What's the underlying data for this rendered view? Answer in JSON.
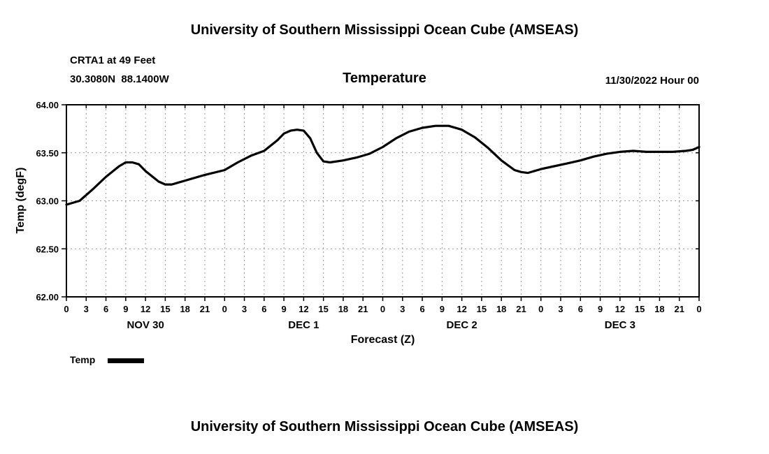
{
  "page": {
    "top_title": "University of Southern Mississippi Ocean Cube (AMSEAS)",
    "bottom_title": "University of Southern Mississippi Ocean Cube (AMSEAS)"
  },
  "header": {
    "station_line1": "CRTA1 at 49 Feet",
    "station_line2": "30.3080N  88.1400W",
    "chart_title": "Temperature",
    "datetime": "11/30/2022 Hour 00"
  },
  "legend": {
    "label": "Temp",
    "color": "#000000",
    "position": "bottom-left"
  },
  "chart_data": {
    "type": "line",
    "title": "Temperature",
    "xlabel": "Forecast (Z)",
    "ylabel": "Temp (degF)",
    "xlim": [
      0,
      96
    ],
    "ylim": [
      62.0,
      64.0
    ],
    "grid": true,
    "x_tick_hours": [
      0,
      3,
      6,
      9,
      12,
      15,
      18,
      21,
      24,
      27,
      30,
      33,
      36,
      39,
      42,
      45,
      48,
      51,
      54,
      57,
      60,
      63,
      66,
      69,
      72,
      75,
      78,
      81,
      84,
      87,
      90,
      93,
      96
    ],
    "x_tick_labels": [
      "0",
      "3",
      "6",
      "9",
      "12",
      "15",
      "18",
      "21",
      "0",
      "3",
      "6",
      "9",
      "12",
      "15",
      "18",
      "21",
      "0",
      "3",
      "6",
      "9",
      "12",
      "15",
      "18",
      "21",
      "0",
      "3",
      "6",
      "9",
      "12",
      "15",
      "18",
      "21",
      "0"
    ],
    "y_tick_values": [
      62.0,
      62.5,
      63.0,
      63.5,
      64.0
    ],
    "y_tick_labels": [
      "62.00",
      "62.50",
      "63.00",
      "63.50",
      "64.00"
    ],
    "date_labels": [
      {
        "hour": 12,
        "label": "NOV 30"
      },
      {
        "hour": 36,
        "label": "DEC 1"
      },
      {
        "hour": 60,
        "label": "DEC 2"
      },
      {
        "hour": 84,
        "label": "DEC 3"
      }
    ],
    "series": [
      {
        "name": "Temp",
        "color": "#000000",
        "x": [
          0,
          2,
          4,
          6,
          8,
          9,
          10,
          11,
          12,
          14,
          15,
          16,
          18,
          21,
          24,
          26,
          28,
          30,
          32,
          33,
          34,
          35,
          36,
          37,
          38,
          39,
          40,
          42,
          44,
          46,
          48,
          50,
          52,
          54,
          56,
          58,
          60,
          62,
          64,
          66,
          68,
          69,
          70,
          72,
          74,
          76,
          78,
          80,
          82,
          84,
          86,
          88,
          90,
          92,
          94,
          95,
          96
        ],
        "values": [
          62.96,
          63.0,
          63.12,
          63.25,
          63.36,
          63.4,
          63.4,
          63.38,
          63.31,
          63.2,
          63.17,
          63.17,
          63.21,
          63.27,
          63.32,
          63.4,
          63.47,
          63.52,
          63.63,
          63.7,
          63.73,
          63.74,
          63.73,
          63.65,
          63.5,
          63.41,
          63.4,
          63.42,
          63.45,
          63.49,
          63.56,
          63.65,
          63.72,
          63.76,
          63.78,
          63.78,
          63.74,
          63.66,
          63.55,
          63.42,
          63.32,
          63.3,
          63.29,
          63.33,
          63.36,
          63.39,
          63.42,
          63.46,
          63.49,
          63.51,
          63.52,
          63.51,
          63.51,
          63.51,
          63.52,
          63.53,
          63.56
        ]
      }
    ]
  }
}
